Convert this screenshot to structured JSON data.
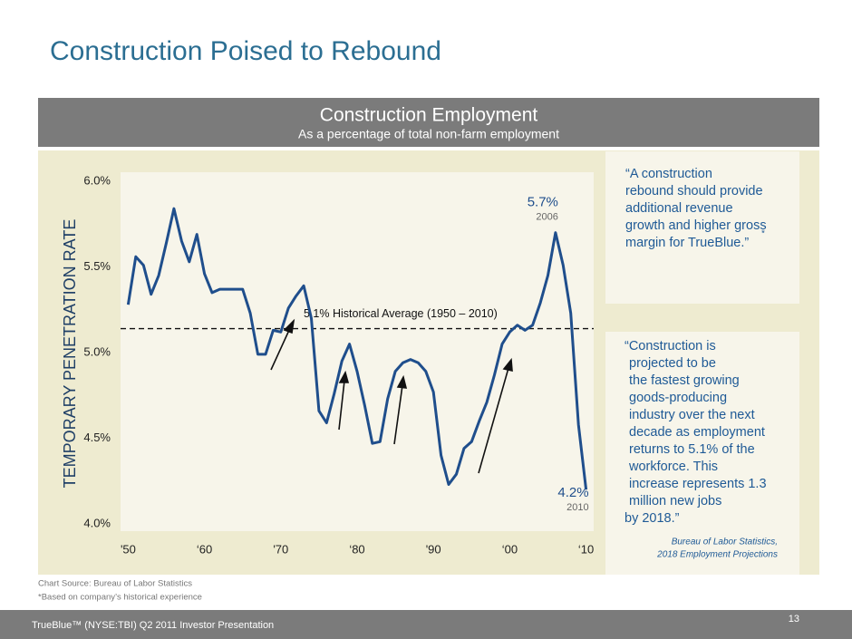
{
  "header": {
    "title": "Construction Poised to Rebound"
  },
  "chart_data": {
    "type": "line",
    "title": "Construction Employment",
    "subtitle": "As a percentage of total non-farm employment",
    "ylabel": "TEMPORARY PENETRATION RATE",
    "x": [
      1950,
      1951,
      1952,
      1953,
      1954,
      1955,
      1956,
      1957,
      1958,
      1959,
      1960,
      1961,
      1962,
      1963,
      1964,
      1965,
      1966,
      1967,
      1968,
      1969,
      1970,
      1971,
      1972,
      1973,
      1974,
      1975,
      1976,
      1977,
      1978,
      1979,
      1980,
      1981,
      1982,
      1983,
      1984,
      1985,
      1986,
      1987,
      1988,
      1989,
      1990,
      1991,
      1992,
      1993,
      1994,
      1995,
      1996,
      1997,
      1998,
      1999,
      2000,
      2001,
      2002,
      2003,
      2004,
      2005,
      2006,
      2007,
      2008,
      2009,
      2010
    ],
    "series": [
      {
        "color": "#1f4e8c",
        "values": [
          5.28,
          5.56,
          5.51,
          5.34,
          5.45,
          5.64,
          5.84,
          5.65,
          5.53,
          5.69,
          5.46,
          5.35,
          5.37,
          5.37,
          5.37,
          5.37,
          5.23,
          4.99,
          4.99,
          5.13,
          5.12,
          5.26,
          5.33,
          5.39,
          5.2,
          4.66,
          4.59,
          4.76,
          4.95,
          5.05,
          4.89,
          4.69,
          4.47,
          4.48,
          4.73,
          4.89,
          4.94,
          4.96,
          4.94,
          4.89,
          4.77,
          4.4,
          4.23,
          4.29,
          4.44,
          4.48,
          4.6,
          4.71,
          4.87,
          5.05,
          5.12,
          5.16,
          5.13,
          5.16,
          5.29,
          5.45,
          5.7,
          5.51,
          5.23,
          4.58,
          4.2
        ]
      }
    ],
    "xlim": [
      1949,
      2011
    ],
    "xticks": [
      {
        "value": 1950,
        "label": "'50"
      },
      {
        "value": 1960,
        "label": "‘60"
      },
      {
        "value": 1970,
        "label": "'70"
      },
      {
        "value": 1980,
        "label": "‘80"
      },
      {
        "value": 1990,
        "label": "'90"
      },
      {
        "value": 2000,
        "label": "‘00"
      },
      {
        "value": 2010,
        "label": "‘10"
      }
    ],
    "ylim": [
      4,
      6
    ],
    "yticks": [
      {
        "value": 4,
        "label": "4.0%"
      },
      {
        "value": 4.5,
        "label": "4.5%"
      },
      {
        "value": 5,
        "label": "5.0%"
      },
      {
        "value": 5.5,
        "label": "5.5%"
      },
      {
        "value": 6,
        "label": "6.0%"
      }
    ],
    "reference_line": {
      "value": 5.14,
      "label": "5.1% Historical Average (1950 – 2010)"
    },
    "annotations": [
      {
        "x": 2006,
        "y": 5.7,
        "label": "5.7%",
        "year": "2006"
      },
      {
        "x": 2010,
        "y": 4.2,
        "label": "4.2%",
        "year": "2010"
      }
    ]
  },
  "quotes": [
    {
      "lines": [
        "“A construction",
        "rebound should provide",
        "additional revenue",
        "growth and higher gross",
        "margin for TrueBlue.”"
      ],
      "mark": "*"
    },
    {
      "lines": [
        "“Construction is",
        "projected to be",
        "the fastest growing",
        "goods-producing",
        "industry over the next",
        "decade as employment",
        "returns to 5.1% of the",
        "workforce. This",
        "increase represents 1.3",
        "million new jobs",
        "by 2018.”"
      ],
      "attribution": [
        "Bureau of Labor Statistics,",
        "2018 Employment Projections"
      ]
    }
  ],
  "notes": [
    "Chart Source: Bureau of Labor Statistics",
    "*Based on company’s historical experience"
  ],
  "footer": {
    "text": "TrueBlue™ (NYSE:TBI) Q2 2011 Investor Presentation",
    "page": "13"
  }
}
